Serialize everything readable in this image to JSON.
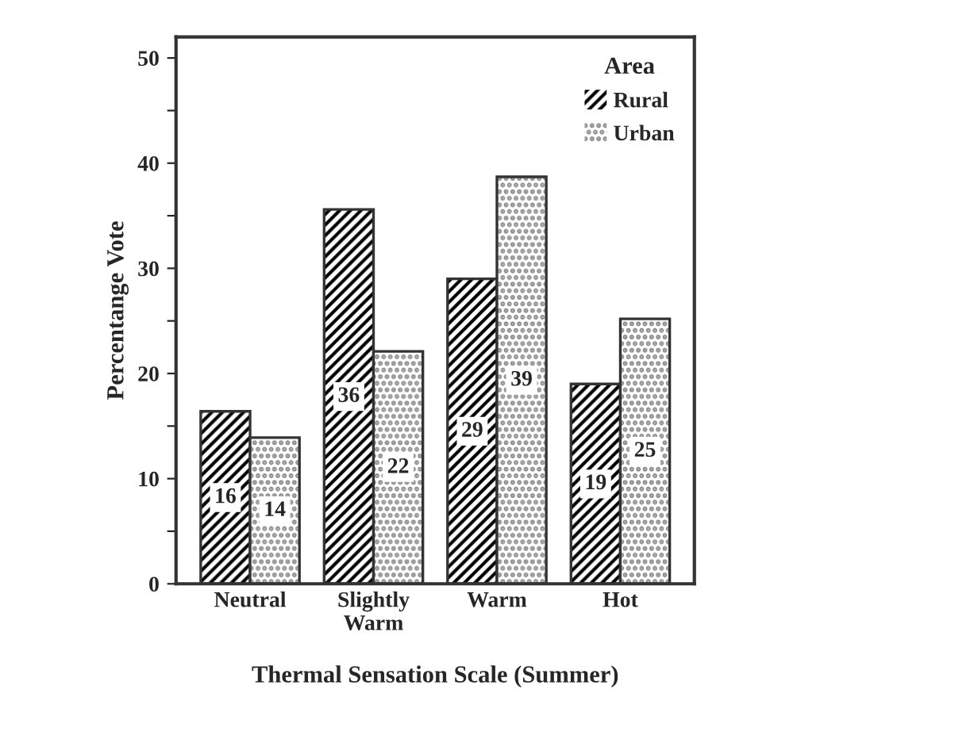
{
  "chart_data": {
    "type": "bar",
    "xlabel": "Thermal Sensation Scale (Summer)",
    "ylabel": "Percentange Vote",
    "legend_title": "Area",
    "categories": [
      "Neutral",
      "Slightly\nWarm",
      "Warm",
      "Hot"
    ],
    "series": [
      {
        "name": "Rural",
        "color": "#000000",
        "values": [
          16.4,
          35.6,
          29.0,
          19.0
        ],
        "value_labels": [
          "16",
          "36",
          "29",
          "19"
        ]
      },
      {
        "name": "Urban",
        "color": "#808080",
        "values": [
          13.9,
          22.1,
          38.7,
          25.2
        ],
        "value_labels": [
          "14",
          "22",
          "39",
          "25"
        ]
      }
    ],
    "ylim": [
      0,
      52
    ],
    "yticks": [
      0,
      {
        "value": 5,
        "label": null
      },
      10,
      {
        "value": 15,
        "label": null
      },
      20,
      {
        "value": 25,
        "label": null
      },
      30,
      {
        "value": 35,
        "label": null
      },
      40,
      {
        "value": 45,
        "label": null
      },
      50
    ],
    "legend": "top right",
    "grid": false
  }
}
